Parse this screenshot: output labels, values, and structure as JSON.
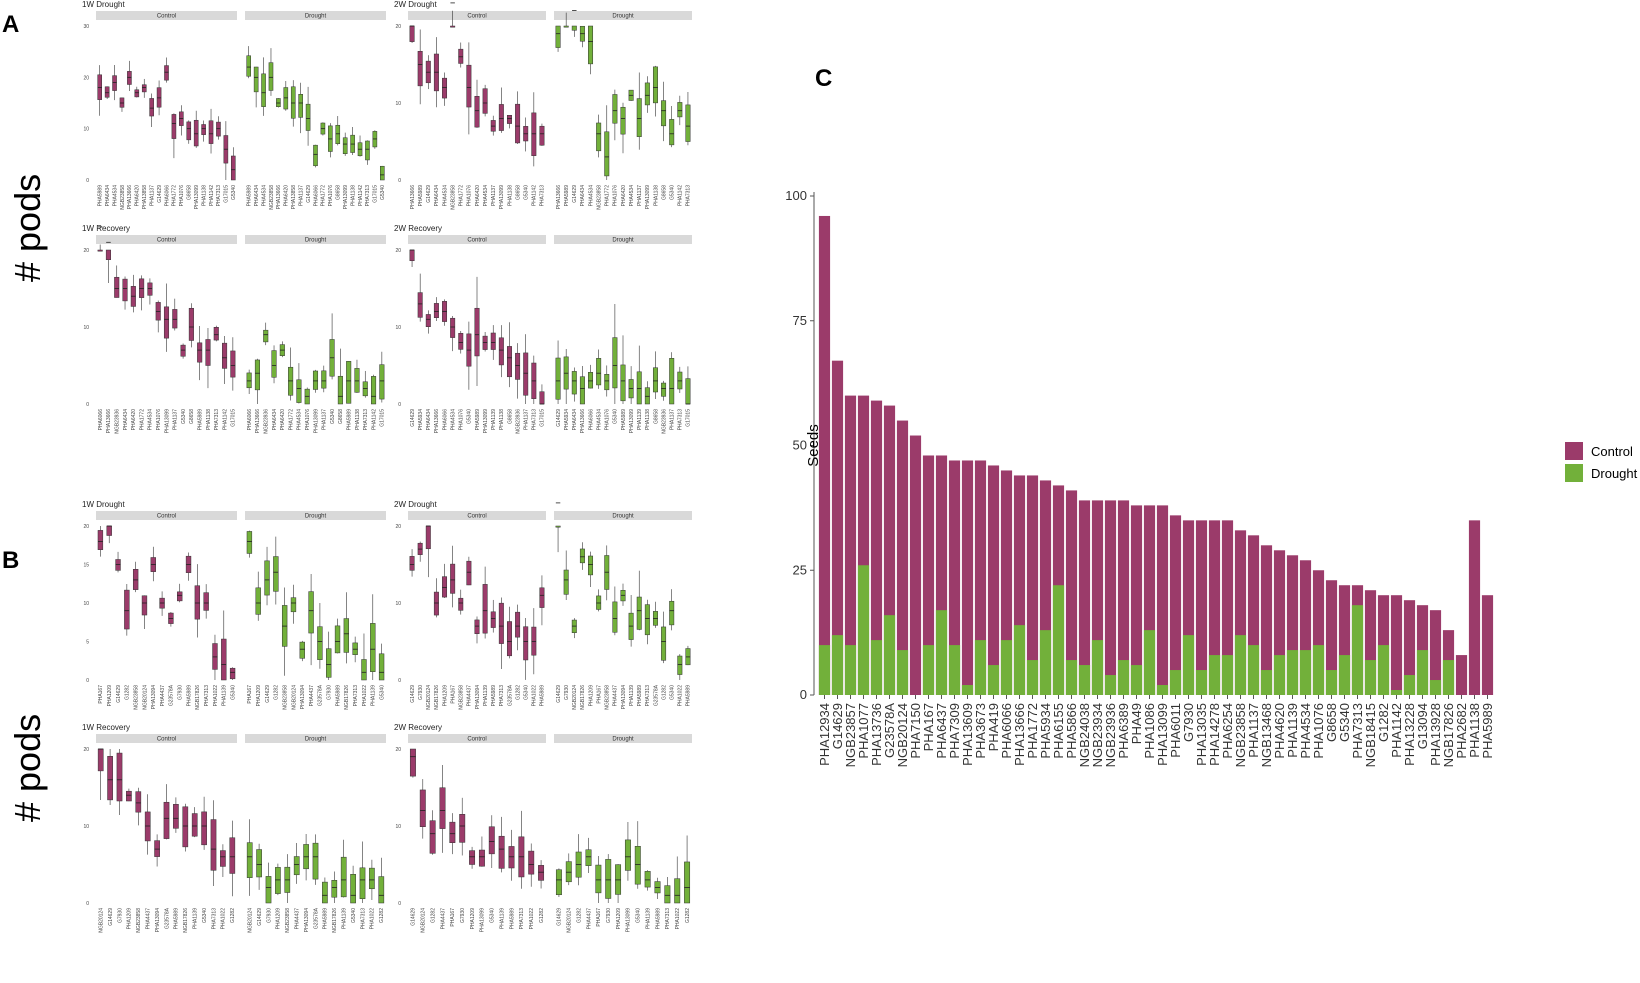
{
  "panel_labels": {
    "a": "A",
    "b": "B",
    "c": "C"
  },
  "y_axis_label": "# pods",
  "colors": {
    "control": "#9b3b6a",
    "drought": "#72b03a",
    "strip": "#d9d9d9"
  },
  "chart_data": [
    {
      "id": "A-1W-Drought",
      "type": "box",
      "title": "1W Drought",
      "ylim": [
        0,
        30
      ],
      "yticks": [
        0,
        10,
        20,
        30
      ],
      "facets": [
        {
          "name": "Control",
          "genotypes": [
            "PHA5989",
            "PHA6434",
            "PHA4534",
            "NGB23858",
            "PHA13666",
            "PHA6420",
            "PHA13858",
            "PHA1137",
            "G14629",
            "PHA6066",
            "PHA1772",
            "PHA1076",
            "G8658",
            "PHA13099",
            "PHA1138",
            "PHA1142",
            "PHA7313",
            "G17015",
            "G5340"
          ],
          "medians": [
            18,
            17,
            19,
            15,
            20,
            17,
            18,
            14,
            16,
            21,
            11,
            12,
            10,
            9,
            10,
            9,
            10,
            6,
            2
          ]
        },
        {
          "name": "Drought",
          "genotypes": [
            "PHA5989",
            "PHA6434",
            "PHA4534",
            "NGB23858",
            "PHA13666",
            "PHA6420",
            "PHA13858",
            "PHA1137",
            "G14629",
            "PHA6066",
            "PHA1772",
            "PHA1076",
            "G8658",
            "PHA13099",
            "PHA1138",
            "PHA1142",
            "PHA7313",
            "G17015",
            "G5340"
          ],
          "medians": [
            22,
            20,
            17,
            20,
            15,
            16,
            15,
            15,
            12,
            5,
            10,
            8,
            9,
            7,
            7,
            6,
            6,
            8,
            1
          ]
        }
      ]
    },
    {
      "id": "A-2W-Drought",
      "type": "box",
      "title": "2W Drought",
      "ylim": [
        0,
        20
      ],
      "yticks": [
        0,
        10,
        20
      ],
      "facets": [
        {
          "name": "Control",
          "genotypes": [
            "PHA13666",
            "PHA5989",
            "G14629",
            "PHA6434",
            "PHA4534",
            "NGB23858",
            "PHA1772",
            "PHA1076",
            "PHA6420",
            "PHA4534",
            "PHA1137",
            "PHA13099",
            "PHA1138",
            "G8658",
            "G5340",
            "PHA1142",
            "PHA7313"
          ],
          "medians": [
            20,
            15,
            14,
            14,
            12,
            23,
            16,
            12,
            9,
            10,
            7,
            8,
            8,
            7,
            6,
            6,
            6
          ]
        },
        {
          "name": "Drought",
          "genotypes": [
            "PHA13666",
            "PHA5989",
            "G14629",
            "PHA6434",
            "PHA4534",
            "NGB23858",
            "PHA1772",
            "PHA1076",
            "PHA6420",
            "PHA4534",
            "PHA1137",
            "PHA13099",
            "PHA1138",
            "G8658",
            "G5340",
            "PHA1142",
            "PHA7313"
          ],
          "medians": [
            19,
            24,
            22,
            19,
            18,
            6,
            3,
            9,
            8,
            11,
            8,
            11,
            12,
            9,
            6,
            9,
            7
          ]
        }
      ]
    },
    {
      "id": "A-1W-Recovery",
      "type": "box",
      "title": "1W Recovery",
      "ylim": [
        0,
        20
      ],
      "yticks": [
        0,
        10,
        20
      ],
      "facets": [
        {
          "name": "Control",
          "genotypes": [
            "PHA6066",
            "PHA13666",
            "NGB23936",
            "PHA6434",
            "PHA6420",
            "PHA1772",
            "PHA4534",
            "PHA1076",
            "PHA13099",
            "PHA1137",
            "G5340",
            "G8658",
            "PHA5989",
            "PHA1138",
            "PHA7313",
            "PHA1142",
            "G17015"
          ],
          "medians": [
            23,
            21,
            15,
            15,
            14,
            15,
            15,
            12,
            11,
            11,
            7,
            10,
            7,
            7,
            9,
            6,
            5
          ]
        },
        {
          "name": "Drought",
          "genotypes": [
            "PHA6066",
            "PHA13666",
            "NGB23936",
            "PHA6434",
            "PHA6420",
            "PHA1772",
            "PHA4534",
            "PHA1076",
            "PHA13099",
            "PHA1137",
            "G5340",
            "G8658",
            "PHA5989",
            "PHA1138",
            "PHA7313",
            "PHA1142",
            "G17015"
          ],
          "medians": [
            3,
            4,
            9,
            5,
            7,
            3,
            2,
            1,
            3,
            3,
            6,
            1,
            3,
            3,
            2,
            1,
            3
          ]
        }
      ]
    },
    {
      "id": "A-2W-Recovery",
      "type": "box",
      "title": "2W Recovery",
      "ylim": [
        0,
        20
      ],
      "yticks": [
        0,
        10,
        20
      ],
      "facets": [
        {
          "name": "Control",
          "genotypes": [
            "G14629",
            "PHA5934",
            "PHA6434",
            "PHA13666",
            "PHA6066",
            "PHA4534",
            "PHA1076",
            "G5340",
            "PHA5989",
            "PHA13099",
            "PHA1139",
            "PHA1138",
            "G8658",
            "NGB23936",
            "PHA1137",
            "PHA7313",
            "G17015"
          ],
          "medians": [
            20,
            13,
            11,
            12,
            12,
            10,
            8,
            7,
            9,
            8,
            8,
            7,
            6,
            5,
            4,
            3,
            0
          ]
        },
        {
          "name": "Drought",
          "genotypes": [
            "G14629",
            "PHA5934",
            "PHA6434",
            "PHA13666",
            "PHA6066",
            "PHA4534",
            "PHA1076",
            "G5340",
            "PHA5989",
            "PHA13099",
            "PHA1139",
            "PHA1138",
            "G8658",
            "NGB23936",
            "PHA1137",
            "PHA7313",
            "G17015"
          ],
          "medians": [
            3,
            4,
            3,
            2,
            3,
            4,
            3,
            5,
            3,
            2,
            2,
            1,
            3,
            2,
            2,
            3,
            0
          ]
        }
      ]
    },
    {
      "id": "B-1W-Drought",
      "type": "box",
      "title": "1W Drought",
      "ylim": [
        0,
        20
      ],
      "yticks": [
        0,
        5,
        10,
        15,
        20
      ],
      "facets": [
        {
          "name": "Control",
          "genotypes": [
            "PHA167",
            "PHA1209",
            "G14629",
            "G1282",
            "NGB23858",
            "NGB20124",
            "PHA13094",
            "PHA4437",
            "G23578A",
            "G7930",
            "PHA5989",
            "NGB17826",
            "PHA7313",
            "PHA1022",
            "PHA1139",
            "G5340"
          ],
          "medians": [
            18,
            20,
            15,
            9,
            13,
            10,
            15,
            10,
            8,
            11,
            15,
            10,
            10,
            3,
            2,
            1
          ]
        },
        {
          "name": "Drought",
          "genotypes": [
            "PHA167",
            "PHA1209",
            "G14629",
            "G1282",
            "NGB23858",
            "NGB20124",
            "PHA13094",
            "PHA4437",
            "G23578A",
            "G7930",
            "PHA5989",
            "NGB17826",
            "PHA7313",
            "PHA1022",
            "PHA1139",
            "G5340"
          ],
          "medians": [
            18,
            10,
            13,
            14,
            7,
            10,
            4,
            9,
            5,
            2,
            5,
            6,
            4,
            1,
            4,
            1
          ]
        }
      ]
    },
    {
      "id": "B-2W-Drought",
      "type": "box",
      "title": "2W Drought",
      "ylim": [
        0,
        20
      ],
      "yticks": [
        0,
        10,
        20
      ],
      "facets": [
        {
          "name": "Control",
          "genotypes": [
            "G14629",
            "G7930",
            "NGB20124",
            "NGB17826",
            "PHA1209",
            "PHA167",
            "NGB23858",
            "PHA4437",
            "PHA13094",
            "PHA1139",
            "PHA5989",
            "PHA7313",
            "G23578A",
            "G1282",
            "G5340",
            "PHA1022",
            "PHA5989"
          ],
          "medians": [
            15,
            17,
            20,
            10,
            12,
            13,
            10,
            14,
            7,
            9,
            8,
            7,
            5,
            7,
            5,
            5,
            11
          ]
        },
        {
          "name": "Drought",
          "genotypes": [
            "G14629",
            "G7930",
            "NGB20124",
            "NGB17826",
            "PHA1209",
            "PHA167",
            "NGB23858",
            "PHA4437",
            "PHA13094",
            "PHA1139",
            "PHA5989",
            "PHA7313",
            "G23578A",
            "G1282",
            "G5340",
            "PHA1022",
            "PHA5989"
          ],
          "medians": [
            23,
            13,
            7,
            16,
            15,
            10,
            14,
            8,
            11,
            7,
            9,
            8,
            8,
            5,
            9,
            2,
            3
          ]
        }
      ]
    },
    {
      "id": "B-1W-Recovery",
      "type": "box",
      "title": "1W Recovery",
      "ylim": [
        0,
        20
      ],
      "yticks": [
        0,
        10,
        20
      ],
      "facets": [
        {
          "name": "Control",
          "genotypes": [
            "NGB20124",
            "G14629",
            "G7930",
            "PHA1209",
            "NGB23858",
            "PHA4437",
            "PHA13094",
            "G23578A",
            "PHA5989",
            "NGB17826",
            "PHA1139",
            "G5340",
            "PHA7313",
            "PHA1022",
            "G1282"
          ],
          "medians": [
            20,
            16,
            16,
            14,
            13,
            10,
            7,
            11,
            11,
            10,
            10,
            10,
            7,
            6,
            6
          ]
        },
        {
          "name": "Drought",
          "genotypes": [
            "NGB20124",
            "G14629",
            "G7930",
            "PHA1209",
            "NGB23858",
            "PHA4437",
            "PHA13094",
            "G23578A",
            "PHA5989",
            "NGB17826",
            "PHA1139",
            "G5340",
            "PHA7313",
            "PHA1022",
            "G1282"
          ],
          "medians": [
            6,
            5,
            2,
            3,
            3,
            5,
            6,
            6,
            1,
            2,
            3,
            1,
            3,
            3,
            1
          ]
        }
      ]
    },
    {
      "id": "B-2W-Recovery",
      "type": "box",
      "title": "2W Recovery",
      "ylim": [
        0,
        20
      ],
      "yticks": [
        0,
        10,
        20
      ],
      "facets": [
        {
          "name": "Control",
          "genotypes": [
            "G14629",
            "NGB20124",
            "G1282",
            "PHA4437",
            "PHA167",
            "G7930",
            "PHA1209",
            "PHA13099",
            "G5340",
            "PHA1139",
            "PHA5989",
            "PHA7313",
            "PHA1022",
            "G1282"
          ],
          "medians": [
            19,
            12,
            9,
            12,
            9,
            10,
            6,
            6,
            8,
            7,
            6,
            6,
            5,
            4
          ]
        },
        {
          "name": "Drought",
          "genotypes": [
            "G14629",
            "NGB20124",
            "G1282",
            "PHA4437",
            "PHA167",
            "G7930",
            "PHA1209",
            "PHA13099",
            "G5340",
            "PHA1139",
            "PHA5989",
            "PHA7313",
            "PHA1022",
            "G1282"
          ],
          "medians": [
            3,
            4,
            5,
            6,
            3,
            3,
            3,
            6,
            5,
            3,
            2,
            1,
            1,
            2
          ]
        }
      ]
    },
    {
      "id": "C",
      "type": "stacked_bar",
      "ylabel": "Seeds",
      "ylim": [
        0,
        100
      ],
      "yticks": [
        0,
        25,
        50,
        75,
        100
      ],
      "legend": [
        "Control",
        "Drought"
      ],
      "legend_position": "right",
      "categories": [
        "PHA12934",
        "G14629",
        "NGB23857",
        "PHA1077",
        "PHA13736",
        "G23578A",
        "NGB20124",
        "PHA7150",
        "PHA167",
        "PHA6437",
        "PHA7309",
        "PHA13609",
        "PHA3673",
        "PHA419",
        "PHA6066",
        "PHA13666",
        "PHA1772",
        "PHA5934",
        "PHA6155",
        "PHA5866",
        "NGB24038",
        "NGB23934",
        "NGB23936",
        "PHA6389",
        "PHA49",
        "PHA1086",
        "PHA13099",
        "PHA6011",
        "G7930",
        "PHA13035",
        "PHA14278",
        "PHA6254",
        "NGB23858",
        "PHA1137",
        "NGB13468",
        "PHA4620",
        "PHA1139",
        "PHA4534",
        "PHA1076",
        "G8658",
        "G5340",
        "PHA7313",
        "NGB18415",
        "G1282",
        "PHA1142",
        "PHA13228",
        "G13094",
        "PHA13928",
        "NGB17826",
        "PHA2682",
        "PHA1138",
        "PHA5989"
      ],
      "series": [
        {
          "name": "Control",
          "values": [
            96,
            67,
            60,
            60,
            59,
            58,
            55,
            52,
            48,
            48,
            47,
            47,
            47,
            46,
            45,
            44,
            44,
            43,
            42,
            41,
            39,
            39,
            39,
            39,
            38,
            38,
            38,
            36,
            35,
            35,
            35,
            35,
            33,
            32,
            30,
            29,
            28,
            27,
            25,
            23,
            22,
            22,
            21,
            20,
            20,
            19,
            18,
            17,
            13,
            8,
            35,
            20
          ]
        },
        {
          "name": "Drought",
          "values": [
            10,
            12,
            10,
            26,
            11,
            16,
            9,
            0,
            10,
            17,
            10,
            2,
            11,
            6,
            11,
            14,
            7,
            13,
            22,
            7,
            6,
            11,
            4,
            7,
            6,
            13,
            2,
            5,
            12,
            5,
            8,
            8,
            12,
            10,
            5,
            8,
            9,
            9,
            10,
            5,
            8,
            18,
            7,
            10,
            1,
            4,
            9,
            3,
            7,
            0,
            0,
            0
          ]
        }
      ]
    }
  ]
}
